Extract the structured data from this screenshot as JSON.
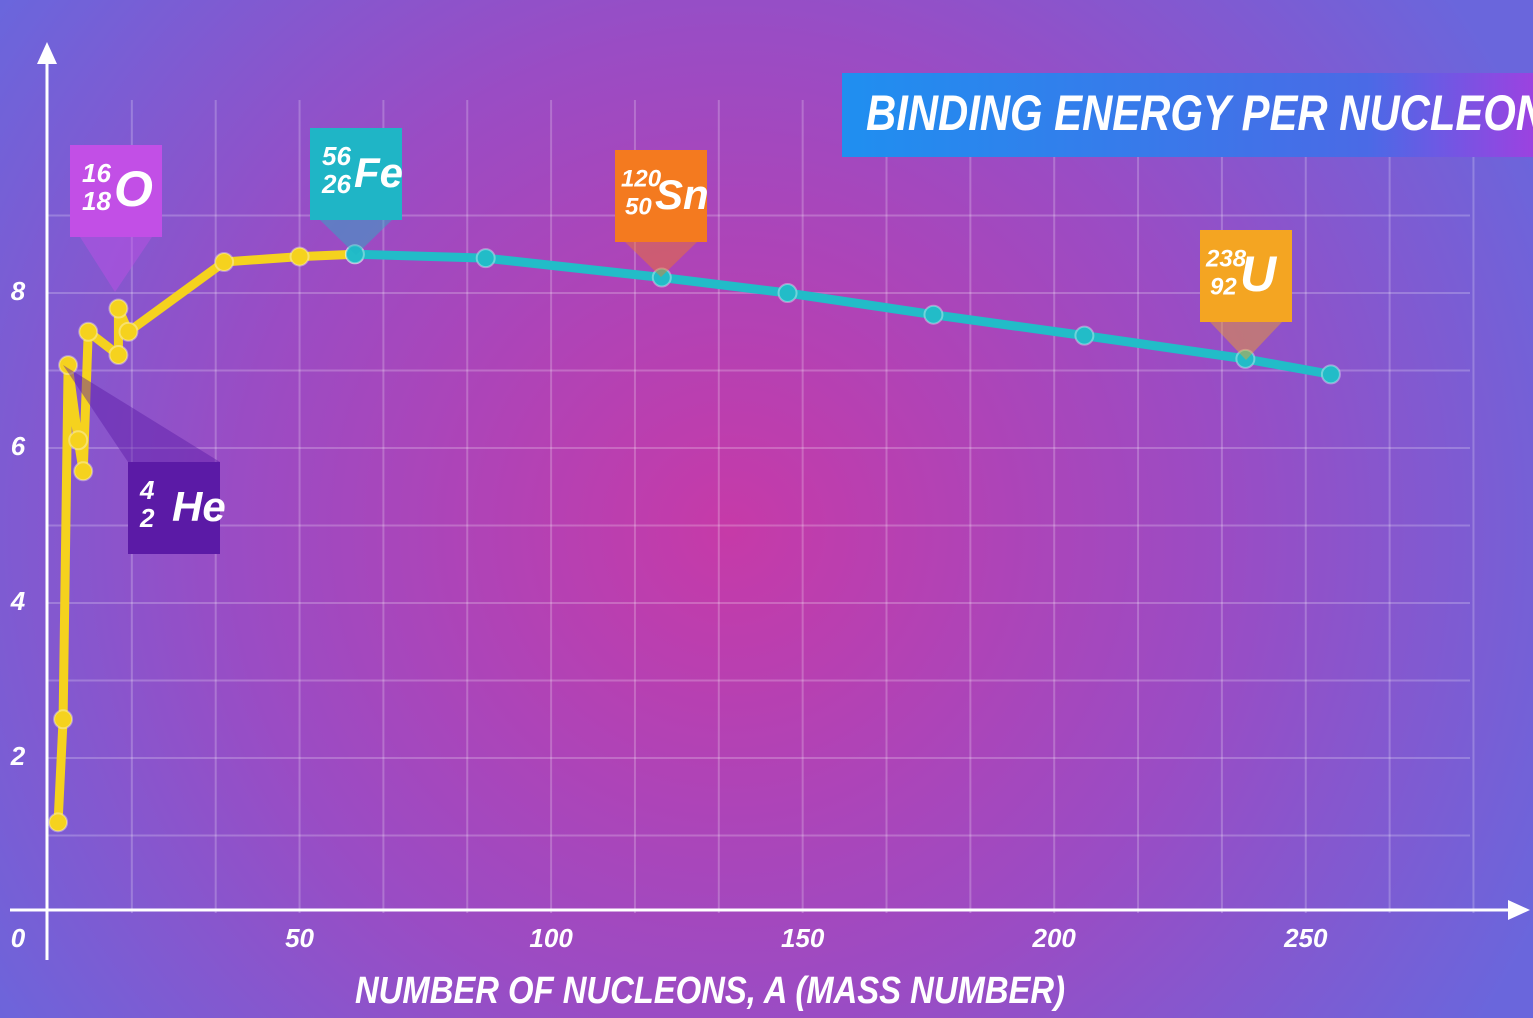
{
  "chart_data": {
    "type": "line",
    "title": "BINDING ENERGY PER NUCLEON",
    "x_label": "NUMBER OF NUCLEONS, A (MASS NUMBER)",
    "xlim": [
      0,
      290
    ],
    "ylim": [
      0,
      11
    ],
    "xticks": [
      0,
      50,
      100,
      150,
      200,
      250
    ],
    "yticks": [
      2,
      4,
      6,
      8
    ],
    "grid": true,
    "series": [
      {
        "color": "#f5d21e",
        "x": [
          2,
          3,
          4,
          6,
          7,
          8,
          14,
          14,
          16,
          35,
          50,
          61
        ],
        "values": [
          1.17,
          2.5,
          7.07,
          6.1,
          5.7,
          7.5,
          7.2,
          7.8,
          7.5,
          8.4,
          8.47,
          8.5
        ]
      },
      {
        "color": "#22bcc8",
        "x": [
          61,
          87,
          122,
          147,
          176,
          206,
          238,
          255
        ],
        "values": [
          8.5,
          8.45,
          8.2,
          8.0,
          7.72,
          7.45,
          7.15,
          6.95
        ]
      }
    ],
    "annotations": [
      {
        "mass": "16",
        "number": "18",
        "symbol": "O",
        "color": "#c24fe6"
      },
      {
        "mass": "56",
        "number": "26",
        "symbol": "Fe",
        "color": "#1fb5c6"
      },
      {
        "mass": "120",
        "number": "50",
        "symbol": "Sn",
        "color": "#f47a1f"
      },
      {
        "mass": "238",
        "number": "92",
        "symbol": "U",
        "color": "#f4a522"
      },
      {
        "mass": "4",
        "number": "2",
        "symbol": "He",
        "color": "#5b1aa6"
      }
    ]
  }
}
